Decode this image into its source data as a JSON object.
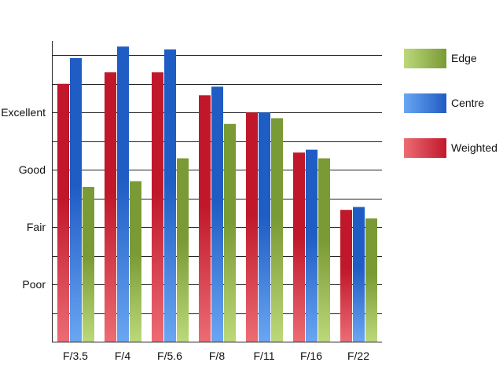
{
  "chart_data": {
    "type": "bar",
    "categories": [
      "F/3.5",
      "F/4",
      "F/5.6",
      "F/8",
      "F/11",
      "F/16",
      "F/22"
    ],
    "series": [
      {
        "name": "Weighted",
        "values": [
          9.0,
          9.4,
          9.4,
          8.6,
          8.0,
          6.6,
          4.6
        ],
        "color": "#c0182a",
        "color_light": "#ec6c74"
      },
      {
        "name": "Centre",
        "values": [
          9.9,
          10.3,
          10.2,
          8.9,
          8.0,
          6.7,
          4.7
        ],
        "color": "#1f5cc4",
        "color_light": "#6aa6f2"
      },
      {
        "name": "Edge",
        "values": [
          5.4,
          5.6,
          6.4,
          7.6,
          7.8,
          6.4,
          4.3
        ],
        "color": "#7a9a35",
        "color_light": "#bcd97a"
      }
    ],
    "ylim": [
      0,
      10.5
    ],
    "y_ticks": [
      {
        "value": 2,
        "label": "Poor"
      },
      {
        "value": 4,
        "label": "Fair"
      },
      {
        "value": 6,
        "label": "Good"
      },
      {
        "value": 8,
        "label": "Excellent"
      }
    ],
    "gridlines": [
      1,
      2,
      3,
      4,
      5,
      6,
      7,
      8,
      9,
      10
    ],
    "legend": {
      "placement": "right",
      "order": [
        "Edge",
        "Centre",
        "Weighted"
      ]
    },
    "title": "",
    "xlabel": "",
    "ylabel": ""
  }
}
